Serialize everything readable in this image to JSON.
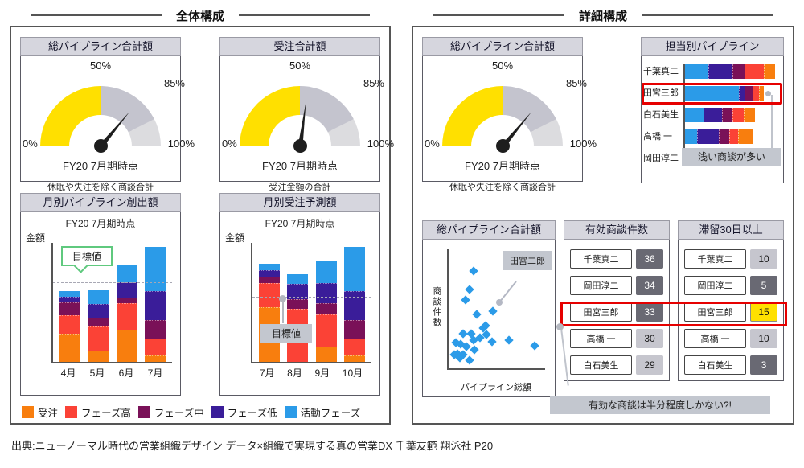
{
  "panels": {
    "overall": {
      "title": "全体構成"
    },
    "detail": {
      "title": "詳細構成"
    }
  },
  "gauge_common": {
    "tick_50": "50%",
    "tick_85": "85%",
    "tick_0": "0%",
    "tick_100": "100%",
    "period": "FY20 7月期時点"
  },
  "gauges": {
    "overall_pipeline": {
      "title": "総パイプライン合計額",
      "caption": "休眠や失注を除く商談合計",
      "value_pct": 72
    },
    "orders_total": {
      "title": "受注合計額",
      "caption": "受注金額の合計",
      "value_pct": 54
    },
    "detail_pipeline": {
      "title": "総パイプライン合計額",
      "caption": "休眠や失注を除く商談合計",
      "value_pct": 72
    }
  },
  "colors": {
    "accent_red": "#E60000",
    "gauge_yellow": "#FFE000",
    "gauge_mid_gray": "#C4C4CE",
    "gauge_light_gray": "#DCDCDF",
    "annotation_gray": "#C3C7CF",
    "badge_dark": "#696973",
    "badge_light": "#C6C6CE",
    "badge_yellow": "#FFE000"
  },
  "legend": {
    "items": [
      {
        "label": "受注",
        "color": "#F87E0E"
      },
      {
        "label": "フェーズ高",
        "color": "#FB4236"
      },
      {
        "label": "フェーズ中",
        "color": "#7A1158"
      },
      {
        "label": "フェーズ低",
        "color": "#3A1D99"
      },
      {
        "label": "活動フェーズ",
        "color": "#2B9BE8"
      }
    ]
  },
  "chart_data": [
    {
      "type": "bar",
      "stacked": true,
      "title": "月別パイプライン創出額",
      "subtitle": "FY20 7月期時点",
      "ylabel": "金額",
      "categories": [
        "4月",
        "5月",
        "6月",
        "7月"
      ],
      "ymax": 160,
      "series": [
        {
          "name": "受注",
          "color": "#F87E0E",
          "values": [
            37,
            15,
            43,
            8
          ]
        },
        {
          "name": "フェーズ高",
          "color": "#FB4236",
          "values": [
            25,
            32,
            35,
            22
          ]
        },
        {
          "name": "フェーズ中",
          "color": "#7A1158",
          "values": [
            17,
            12,
            7,
            25
          ]
        },
        {
          "name": "フェーズ低",
          "color": "#3A1D99",
          "values": [
            7,
            18,
            20,
            38
          ]
        },
        {
          "name": "活動フェーズ",
          "color": "#2B9BE8",
          "values": [
            7,
            18,
            23,
            59
          ]
        }
      ],
      "target": {
        "label": "目標値",
        "value": 105
      }
    },
    {
      "type": "bar",
      "stacked": true,
      "title": "月別受注予測額",
      "subtitle": "FY20 7月期時点",
      "ylabel": "金額",
      "categories": [
        "7月",
        "8月",
        "9月",
        "10月"
      ],
      "ymax": 160,
      "series": [
        {
          "name": "受注",
          "color": "#F87E0E",
          "values": [
            72,
            0,
            20,
            8
          ]
        },
        {
          "name": "フェーズ高",
          "color": "#FB4236",
          "values": [
            32,
            70,
            43,
            22
          ]
        },
        {
          "name": "フェーズ中",
          "color": "#7A1158",
          "values": [
            8,
            13,
            15,
            25
          ]
        },
        {
          "name": "フェーズ低",
          "color": "#3A1D99",
          "values": [
            8,
            20,
            27,
            38
          ]
        },
        {
          "name": "活動フェーズ",
          "color": "#2B9BE8",
          "values": [
            8,
            13,
            30,
            59
          ]
        }
      ],
      "target": {
        "label": "目標値",
        "value": 85
      }
    },
    {
      "type": "bar",
      "orientation": "horizontal",
      "stacked": true,
      "title": "担当別パイプライン",
      "categories": [
        "千葉真二",
        "田宮三郎",
        "白石美生",
        "高橋 一",
        "岡田淳二"
      ],
      "xmax": 145,
      "series": [
        {
          "name": "活動フェーズ",
          "color": "#2B9BE8",
          "values": [
            36,
            82,
            28,
            18,
            32
          ]
        },
        {
          "name": "フェーズ低",
          "color": "#3A1D99",
          "values": [
            36,
            9,
            28,
            34,
            23
          ]
        },
        {
          "name": "フェーズ中",
          "color": "#7A1158",
          "values": [
            19,
            12,
            16,
            15,
            23
          ]
        },
        {
          "name": "フェーズ高",
          "color": "#FB4236",
          "values": [
            30,
            10,
            18,
            14,
            10
          ]
        },
        {
          "name": "受注",
          "color": "#F87E0E",
          "values": [
            17,
            7,
            17,
            22,
            14
          ]
        }
      ],
      "highlight_category": "田宮三郎"
    },
    {
      "type": "scatter",
      "title": "総パイプライン合計額",
      "xlabel": "パイプライン総額",
      "ylabel": "商談件数",
      "marker_color": "#2B9BE8",
      "points": [
        [
          25.5,
          18.2
        ],
        [
          21.3,
          33.8
        ],
        [
          17.7,
          42.6
        ],
        [
          29.1,
          54.7
        ],
        [
          46.1,
          52.0
        ],
        [
          35.5,
          66.2
        ],
        [
          38.3,
          64.2
        ],
        [
          32.6,
          74.3
        ],
        [
          39.0,
          71.6
        ],
        [
          14.9,
          70.9
        ],
        [
          23.4,
          70.9
        ],
        [
          7.1,
          78.4
        ],
        [
          12.8,
          79.7
        ],
        [
          18.4,
          81.8
        ],
        [
          25.5,
          76.4
        ],
        [
          44.7,
          77.7
        ],
        [
          62.4,
          76.4
        ],
        [
          89.4,
          81.1
        ],
        [
          9.2,
          87.8
        ],
        [
          14.9,
          88.5
        ],
        [
          5.7,
          88.5
        ],
        [
          11.3,
          91.2
        ],
        [
          21.3,
          93.2
        ],
        [
          27.0,
          84.5
        ]
      ],
      "annotation": {
        "label": "田宮二郎",
        "point": [
          51.8,
          43.9
        ]
      }
    }
  ],
  "tables": [
    {
      "title": "有効商談件数",
      "rows": [
        {
          "name": "千葉真二",
          "value": 36,
          "style": "dark"
        },
        {
          "name": "岡田淳二",
          "value": 34,
          "style": "dark"
        },
        {
          "name": "田宮三郎",
          "value": 33,
          "style": "dark",
          "highlight": true
        },
        {
          "name": "高橋 一",
          "value": 30,
          "style": "light"
        },
        {
          "name": "白石美生",
          "value": 29,
          "style": "light"
        }
      ]
    },
    {
      "title": "滞留30日以上",
      "rows": [
        {
          "name": "千葉真二",
          "value": 10,
          "style": "light"
        },
        {
          "name": "岡田淳二",
          "value": 5,
          "style": "dark"
        },
        {
          "name": "田宮三郎",
          "value": 15,
          "style": "yellow",
          "highlight": true
        },
        {
          "name": "高橋 一",
          "value": 10,
          "style": "light"
        },
        {
          "name": "白石美生",
          "value": 3,
          "style": "dark"
        }
      ]
    }
  ],
  "annotations": {
    "shallow_deals": "浅い商談が多い",
    "valid_deals": "有効な商談は半分程度しかない?!"
  },
  "page": {
    "citation": "出典:ニューノーマル時代の営業組織デザイン データ×組織で実現する真の営業DX 千葉友範 翔泳社 P20"
  }
}
